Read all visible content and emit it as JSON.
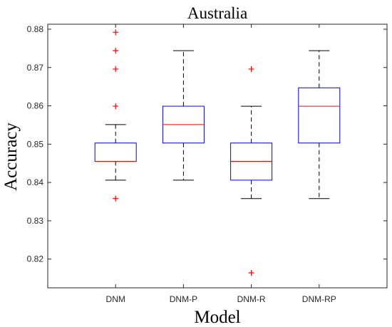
{
  "chart_data": {
    "type": "box",
    "title": "Australia",
    "xlabel": "Model",
    "ylabel": "Accuracy",
    "ylim": [
      0.8125,
      0.8813
    ],
    "yticks": [
      0.82,
      0.83,
      0.84,
      0.85,
      0.86,
      0.87,
      0.88
    ],
    "ytick_labels": [
      "0.82",
      "0.83",
      "0.84",
      "0.85",
      "0.86",
      "0.87",
      "0.88"
    ],
    "categories": [
      "DNM",
      "DNM-P",
      "DNM-R",
      "DNM-RP"
    ],
    "boxes": [
      {
        "name": "DNM",
        "whisker_low": 0.8406,
        "q1": 0.8455,
        "median": 0.8455,
        "q3": 0.8503,
        "whisker_high": 0.8551,
        "outliers": [
          0.8792,
          0.8744,
          0.8696,
          0.8599,
          0.8358
        ]
      },
      {
        "name": "DNM-P",
        "whisker_low": 0.8406,
        "q1": 0.8503,
        "median": 0.8551,
        "q3": 0.8599,
        "whisker_high": 0.8744,
        "outliers": []
      },
      {
        "name": "DNM-R",
        "whisker_low": 0.8358,
        "q1": 0.8406,
        "median": 0.8455,
        "q3": 0.8503,
        "whisker_high": 0.8599,
        "outliers": [
          0.8696,
          0.8164
        ]
      },
      {
        "name": "DNM-RP",
        "whisker_low": 0.8358,
        "q1": 0.8503,
        "median": 0.8599,
        "q3": 0.8647,
        "whisker_high": 0.8744,
        "outliers": []
      }
    ],
    "colors": {
      "box": "#0000ff",
      "median": "#ff0000",
      "whisker": "#000000",
      "outlier": "#ff0000"
    },
    "grid": false,
    "legend": "none"
  }
}
